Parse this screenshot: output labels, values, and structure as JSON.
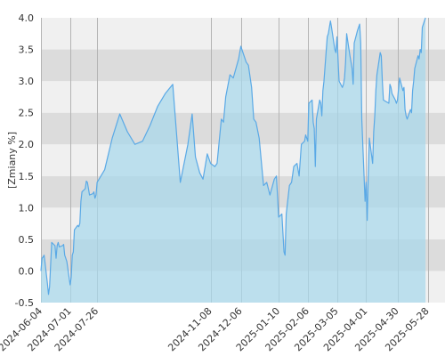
{
  "chart_data": {
    "type": "area",
    "title": "",
    "xlabel": "",
    "ylabel": "[Zmiany %]",
    "ylim": [
      -0.5,
      4.0
    ],
    "y_ticks": [
      -0.5,
      0.0,
      0.5,
      1.0,
      1.5,
      2.0,
      2.5,
      3.0,
      3.5,
      4.0
    ],
    "y_tick_labels": [
      "-0.5",
      "0.0",
      "0.5",
      "1.0",
      "1.5",
      "2.0",
      "2.5",
      "3.0",
      "3.5",
      "4.0"
    ],
    "xlim": [
      "2024-06-04",
      "2025-06-13"
    ],
    "x_ticks": [
      "2024-06-04",
      "2024-07-01",
      "2024-07-26",
      "2024-11-08",
      "2024-12-06",
      "2025-01-10",
      "2025-02-06",
      "2025-03-05",
      "2025-04-01",
      "2025-04-30",
      "2025-05-28"
    ],
    "grid": "vertical lines at x ticks; alternating horizontal bands",
    "colors": {
      "line": "#5aa9e6",
      "fill": "#a8d8ec",
      "band_light": "#f0f0f0",
      "band_dark": "#dcdcdc",
      "grid": "#b4b4b4",
      "axis_text": "#333333"
    },
    "series": [
      {
        "values": [
          [
            "2024-06-04",
            0.0
          ],
          [
            "2024-06-05",
            0.2
          ],
          [
            "2024-06-06",
            0.22
          ],
          [
            "2024-06-07",
            0.25
          ],
          [
            "2024-06-10",
            -0.2
          ],
          [
            "2024-06-11",
            -0.37
          ],
          [
            "2024-06-12",
            -0.25
          ],
          [
            "2024-06-13",
            0.1
          ],
          [
            "2024-06-14",
            0.45
          ],
          [
            "2024-06-17",
            0.4
          ],
          [
            "2024-06-18",
            0.2
          ],
          [
            "2024-06-19",
            0.4
          ],
          [
            "2024-06-20",
            0.45
          ],
          [
            "2024-06-21",
            0.38
          ],
          [
            "2024-06-24",
            0.4
          ],
          [
            "2024-06-25",
            0.42
          ],
          [
            "2024-06-26",
            0.25
          ],
          [
            "2024-06-27",
            0.2
          ],
          [
            "2024-06-28",
            0.15
          ],
          [
            "2024-07-01",
            -0.22
          ],
          [
            "2024-07-02",
            -0.1
          ],
          [
            "2024-07-03",
            0.25
          ],
          [
            "2024-07-04",
            0.3
          ],
          [
            "2024-07-05",
            0.65
          ],
          [
            "2024-07-08",
            0.72
          ],
          [
            "2024-07-09",
            0.7
          ],
          [
            "2024-07-10",
            0.75
          ],
          [
            "2024-07-11",
            1.1
          ],
          [
            "2024-07-12",
            1.25
          ],
          [
            "2024-07-15",
            1.3
          ],
          [
            "2024-07-16",
            1.42
          ],
          [
            "2024-07-17",
            1.4
          ],
          [
            "2024-07-18",
            1.3
          ],
          [
            "2024-07-19",
            1.2
          ],
          [
            "2024-07-22",
            1.22
          ],
          [
            "2024-07-23",
            1.25
          ],
          [
            "2024-07-24",
            1.15
          ],
          [
            "2024-07-25",
            1.2
          ],
          [
            "2024-07-26",
            1.4
          ],
          [
            "2024-08-02",
            1.6
          ],
          [
            "2024-08-09",
            2.1
          ],
          [
            "2024-08-16",
            2.48
          ],
          [
            "2024-08-23",
            2.2
          ],
          [
            "2024-08-30",
            2.0
          ],
          [
            "2024-09-06",
            2.05
          ],
          [
            "2024-09-13",
            2.3
          ],
          [
            "2024-09-20",
            2.6
          ],
          [
            "2024-09-27",
            2.8
          ],
          [
            "2024-10-04",
            2.95
          ],
          [
            "2024-10-11",
            1.4
          ],
          [
            "2024-10-18",
            2.0
          ],
          [
            "2024-10-22",
            2.48
          ],
          [
            "2024-10-25",
            1.8
          ],
          [
            "2024-10-29",
            1.55
          ],
          [
            "2024-11-01",
            1.45
          ],
          [
            "2024-11-05",
            1.85
          ],
          [
            "2024-11-08",
            1.7
          ],
          [
            "2024-11-12",
            1.65
          ],
          [
            "2024-11-14",
            1.7
          ],
          [
            "2024-11-18",
            2.4
          ],
          [
            "2024-11-20",
            2.35
          ],
          [
            "2024-11-22",
            2.75
          ],
          [
            "2024-11-26",
            3.1
          ],
          [
            "2024-11-29",
            3.05
          ],
          [
            "2024-12-04",
            3.35
          ],
          [
            "2024-12-06",
            3.55
          ],
          [
            "2024-12-09",
            3.4
          ],
          [
            "2024-12-11",
            3.3
          ],
          [
            "2024-12-13",
            3.25
          ],
          [
            "2024-12-16",
            2.9
          ],
          [
            "2024-12-18",
            2.4
          ],
          [
            "2024-12-20",
            2.35
          ],
          [
            "2024-12-23",
            2.1
          ],
          [
            "2024-12-27",
            1.35
          ],
          [
            "2024-12-30",
            1.4
          ],
          [
            "2025-01-02",
            1.2
          ],
          [
            "2025-01-06",
            1.45
          ],
          [
            "2025-01-08",
            1.5
          ],
          [
            "2025-01-10",
            0.85
          ],
          [
            "2025-01-13",
            0.9
          ],
          [
            "2025-01-15",
            0.3
          ],
          [
            "2025-01-16",
            0.25
          ],
          [
            "2025-01-17",
            0.9
          ],
          [
            "2025-01-20",
            1.35
          ],
          [
            "2025-01-22",
            1.4
          ],
          [
            "2025-01-24",
            1.65
          ],
          [
            "2025-01-27",
            1.7
          ],
          [
            "2025-01-29",
            1.5
          ],
          [
            "2025-01-31",
            2.0
          ],
          [
            "2025-02-03",
            2.05
          ],
          [
            "2025-02-04",
            2.15
          ],
          [
            "2025-02-05",
            2.1
          ],
          [
            "2025-02-06",
            2.05
          ],
          [
            "2025-02-07",
            2.65
          ],
          [
            "2025-02-10",
            2.7
          ],
          [
            "2025-02-11",
            2.35
          ],
          [
            "2025-02-12",
            2.25
          ],
          [
            "2025-02-13",
            1.65
          ],
          [
            "2025-02-14",
            2.4
          ],
          [
            "2025-02-17",
            2.7
          ],
          [
            "2025-02-18",
            2.65
          ],
          [
            "2025-02-19",
            2.45
          ],
          [
            "2025-02-20",
            2.85
          ],
          [
            "2025-02-21",
            3.0
          ],
          [
            "2025-02-24",
            3.7
          ],
          [
            "2025-02-25",
            3.75
          ],
          [
            "2025-02-26",
            3.85
          ],
          [
            "2025-02-27",
            3.95
          ],
          [
            "2025-02-28",
            3.85
          ],
          [
            "2025-03-03",
            3.5
          ],
          [
            "2025-03-04",
            3.45
          ],
          [
            "2025-03-05",
            3.7
          ],
          [
            "2025-03-06",
            3.35
          ],
          [
            "2025-03-07",
            3.0
          ],
          [
            "2025-03-10",
            2.9
          ],
          [
            "2025-03-11",
            2.95
          ],
          [
            "2025-03-12",
            3.05
          ],
          [
            "2025-03-13",
            3.3
          ],
          [
            "2025-03-14",
            3.75
          ],
          [
            "2025-03-17",
            3.4
          ],
          [
            "2025-03-18",
            3.3
          ],
          [
            "2025-03-19",
            3.2
          ],
          [
            "2025-03-20",
            2.95
          ],
          [
            "2025-03-21",
            3.6
          ],
          [
            "2025-03-24",
            3.8
          ],
          [
            "2025-03-25",
            3.85
          ],
          [
            "2025-03-26",
            3.9
          ],
          [
            "2025-03-27",
            3.6
          ],
          [
            "2025-03-28",
            2.4
          ],
          [
            "2025-03-31",
            1.1
          ],
          [
            "2025-04-01",
            1.4
          ],
          [
            "2025-04-02",
            0.8
          ],
          [
            "2025-04-03",
            1.55
          ],
          [
            "2025-04-04",
            2.1
          ],
          [
            "2025-04-07",
            1.7
          ],
          [
            "2025-04-08",
            2.2
          ],
          [
            "2025-04-09",
            2.45
          ],
          [
            "2025-04-10",
            2.85
          ],
          [
            "2025-04-11",
            3.1
          ],
          [
            "2025-04-14",
            3.45
          ],
          [
            "2025-04-15",
            3.4
          ],
          [
            "2025-04-16",
            3.0
          ],
          [
            "2025-04-17",
            2.7
          ],
          [
            "2025-04-22",
            2.65
          ],
          [
            "2025-04-23",
            2.95
          ],
          [
            "2025-04-24",
            2.9
          ],
          [
            "2025-04-25",
            2.8
          ],
          [
            "2025-04-28",
            2.7
          ],
          [
            "2025-04-29",
            2.65
          ],
          [
            "2025-04-30",
            2.7
          ],
          [
            "2025-05-02",
            3.05
          ],
          [
            "2025-05-05",
            2.85
          ],
          [
            "2025-05-06",
            2.9
          ],
          [
            "2025-05-07",
            2.55
          ],
          [
            "2025-05-08",
            2.45
          ],
          [
            "2025-05-09",
            2.4
          ],
          [
            "2025-05-12",
            2.55
          ],
          [
            "2025-05-13",
            2.5
          ],
          [
            "2025-05-14",
            2.85
          ],
          [
            "2025-05-15",
            3.0
          ],
          [
            "2025-05-16",
            3.2
          ],
          [
            "2025-05-19",
            3.4
          ],
          [
            "2025-05-20",
            3.35
          ],
          [
            "2025-05-21",
            3.5
          ],
          [
            "2025-05-22",
            3.45
          ],
          [
            "2025-05-23",
            3.85
          ],
          [
            "2025-05-26",
            4.0
          ]
        ]
      }
    ]
  }
}
